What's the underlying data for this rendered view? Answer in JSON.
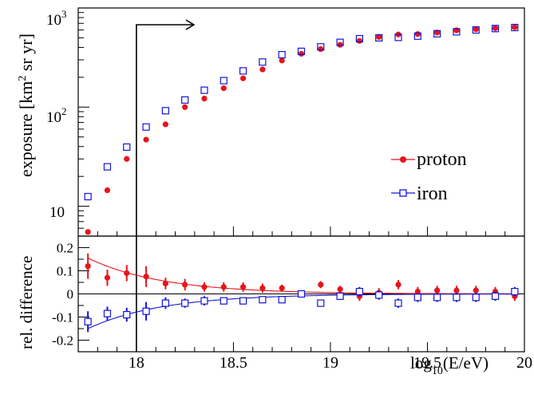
{
  "colors": {
    "proton": "#e8141b",
    "iron": "#1515d6",
    "axis": "#000000"
  },
  "top_panel": {
    "ylabel": "exposure [km",
    "ylabel_sup": "2",
    "ylabel_tail": " sr yr]",
    "ytick_10": "10",
    "ytick_100_base": "10",
    "ytick_100_exp": "2",
    "ytick_1000_base": "10",
    "ytick_1000_exp": "3",
    "legend": [
      {
        "label": "proton",
        "series": "proton"
      },
      {
        "label": "iron",
        "series": "iron"
      }
    ]
  },
  "bottom_panel": {
    "ylabel": "rel. difference",
    "yticks": [
      "0.2",
      "0.1",
      "0",
      "-0.1",
      "-0.2"
    ]
  },
  "xaxis": {
    "ticks": [
      "18",
      "18.5",
      "19",
      "19.5",
      "20"
    ],
    "label_pre": "log",
    "label_sub": "10",
    "label_post": "(E/eV)"
  },
  "chart_data": [
    {
      "type": "scatter",
      "panel": "top",
      "ylabel": "exposure [km^2 sr yr]",
      "ylog": true,
      "xlim": [
        17.7,
        20.0
      ],
      "ylim": [
        5,
        1000
      ],
      "threshold_marker_x": 18.0,
      "x": [
        17.75,
        17.85,
        17.95,
        18.05,
        18.15,
        18.25,
        18.35,
        18.45,
        18.55,
        18.65,
        18.75,
        18.85,
        18.95,
        19.05,
        19.15,
        19.25,
        19.35,
        19.45,
        19.55,
        19.65,
        19.75,
        19.85,
        19.95
      ],
      "series": [
        {
          "name": "proton",
          "values": [
            5.5,
            14.5,
            30,
            47,
            67,
            100,
            122,
            155,
            195,
            240,
            295,
            345,
            385,
            425,
            465,
            510,
            540,
            545,
            565,
            595,
            610,
            625,
            640
          ]
        },
        {
          "name": "iron",
          "values": [
            12.5,
            25,
            39.5,
            63,
            92,
            118,
            148,
            185,
            232,
            285,
            338,
            365,
            405,
            450,
            490,
            500,
            505,
            520,
            550,
            575,
            600,
            620,
            635
          ]
        }
      ]
    },
    {
      "type": "scatter",
      "panel": "bottom",
      "ylabel": "rel. difference",
      "xlabel": "log10(E/eV)",
      "xlim": [
        17.7,
        20.0
      ],
      "ylim": [
        -0.25,
        0.25
      ],
      "x": [
        17.75,
        17.85,
        17.95,
        18.05,
        18.15,
        18.25,
        18.35,
        18.45,
        18.55,
        18.65,
        18.75,
        18.85,
        18.95,
        19.05,
        19.15,
        19.25,
        19.35,
        19.45,
        19.55,
        19.65,
        19.75,
        19.85,
        19.95
      ],
      "series": [
        {
          "name": "proton",
          "values": [
            0.12,
            0.07,
            0.09,
            0.075,
            0.045,
            0.04,
            0.03,
            0.03,
            0.03,
            0.025,
            0.025,
            0.0,
            0.04,
            0.02,
            -0.01,
            0.005,
            0.04,
            0.01,
            0.015,
            0.015,
            0.015,
            0.01,
            -0.01
          ],
          "errors": [
            0.055,
            0.035,
            0.035,
            0.045,
            0.025,
            0.025,
            0.02,
            0.02,
            0.02,
            0.02,
            0.015,
            0.015,
            0.015,
            0.015,
            0.02,
            0.02,
            0.02,
            0.02,
            0.02,
            0.02,
            0.02,
            0.02,
            0.02
          ],
          "fit_amp": 0.155,
          "fit_slope": 2.6
        },
        {
          "name": "iron",
          "values": [
            -0.12,
            -0.085,
            -0.09,
            -0.075,
            -0.04,
            -0.04,
            -0.03,
            -0.03,
            -0.03,
            -0.025,
            -0.025,
            0.0,
            -0.04,
            -0.01,
            0.01,
            -0.005,
            -0.04,
            -0.015,
            -0.015,
            -0.015,
            -0.015,
            -0.01,
            0.01
          ],
          "errors": [
            0.045,
            0.03,
            0.03,
            0.04,
            0.025,
            0.02,
            0.02,
            0.015,
            0.015,
            0.015,
            0.015,
            0.015,
            0.015,
            0.015,
            0.02,
            0.02,
            0.02,
            0.02,
            0.02,
            0.02,
            0.02,
            0.02,
            0.02
          ],
          "fit_amp": -0.15,
          "fit_slope": 2.6
        }
      ]
    }
  ]
}
